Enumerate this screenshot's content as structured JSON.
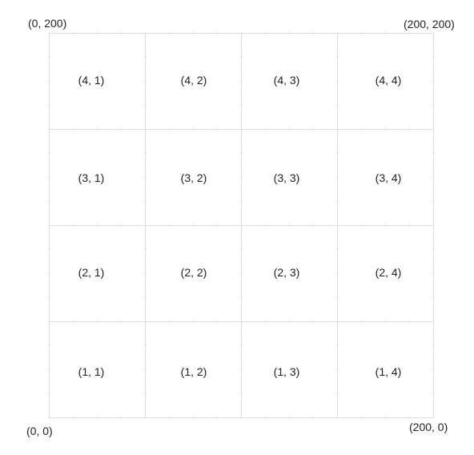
{
  "corners": {
    "top_left": "(0, 200)",
    "top_right": "(200, 200)",
    "bottom_left": "(0, 0)",
    "bottom_right": "(200, 0)"
  },
  "grid": {
    "rows": 4,
    "cols": 4,
    "cells": [
      [
        "(4, 1)",
        "(4, 2)",
        "(4, 3)",
        "(4, 4)"
      ],
      [
        "(3, 1)",
        "(3, 2)",
        "(3, 3)",
        "(3, 4)"
      ],
      [
        "(2, 1)",
        "(2, 2)",
        "(2, 3)",
        "(2, 4)"
      ],
      [
        "(1, 1)",
        "(1, 2)",
        "(1, 3)",
        "(1, 4)"
      ]
    ]
  },
  "colors": {
    "major_line": "#dcdcdc",
    "minor_tick": "#ececec",
    "text": "#222222"
  }
}
